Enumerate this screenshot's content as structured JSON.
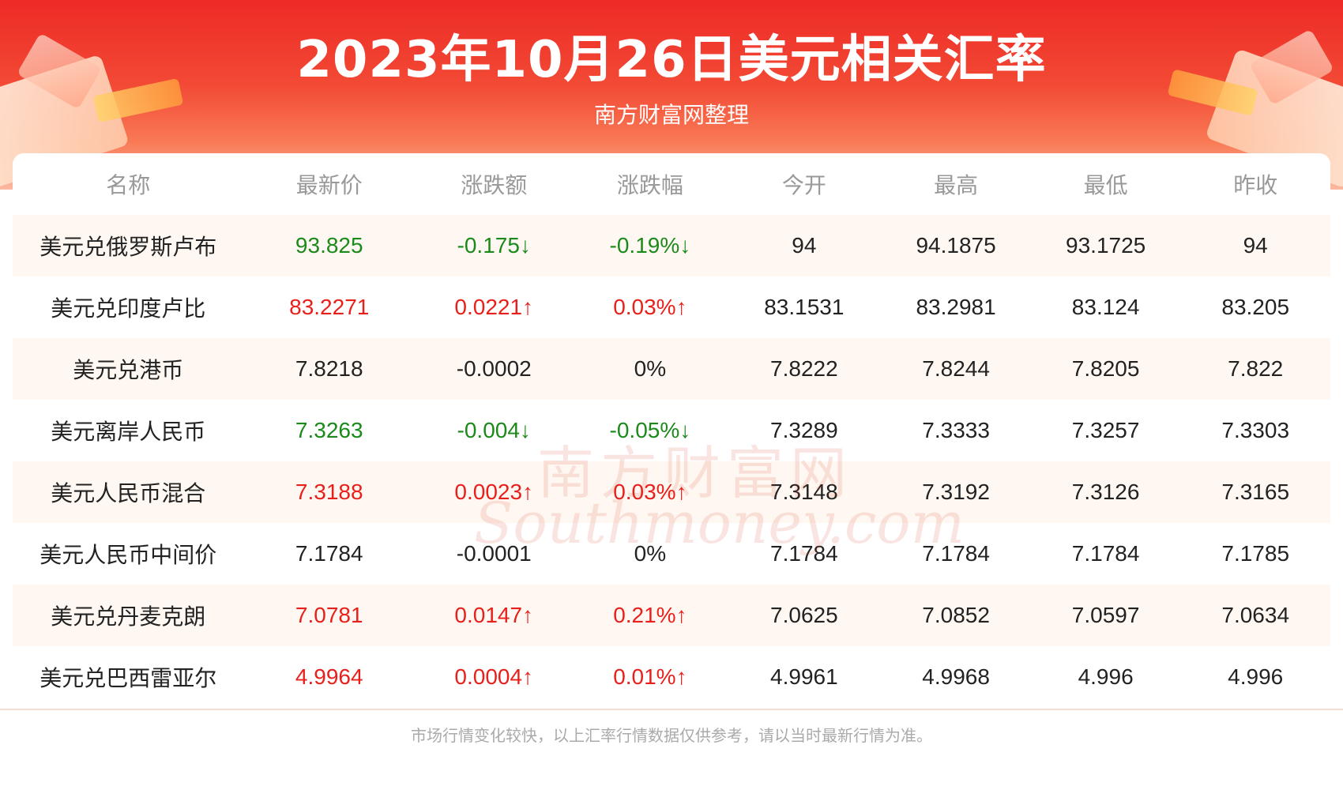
{
  "title": "2023年10月26日美元相关汇率",
  "subtitle": "南方财富网整理",
  "watermark": {
    "cn": "南方财富网",
    "en": "Southmoney.com"
  },
  "colors": {
    "up": "#e8201c",
    "down": "#1b8a1b",
    "banner": "#ee2a26"
  },
  "table": {
    "headers": [
      "名称",
      "最新价",
      "涨跌额",
      "涨跌幅",
      "今开",
      "最高",
      "最低",
      "昨收"
    ],
    "rows": [
      {
        "name": "美元兑俄罗斯卢布",
        "latest": "93.825",
        "change": "-0.175↓",
        "pct": "-0.19%↓",
        "open": "94",
        "high": "94.1875",
        "low": "93.1725",
        "prev": "94",
        "trend": "down"
      },
      {
        "name": "美元兑印度卢比",
        "latest": "83.2271",
        "change": "0.0221↑",
        "pct": "0.03%↑",
        "open": "83.1531",
        "high": "83.2981",
        "low": "83.124",
        "prev": "83.205",
        "trend": "up"
      },
      {
        "name": "美元兑港币",
        "latest": "7.8218",
        "change": "-0.0002",
        "pct": "0%",
        "open": "7.8222",
        "high": "7.8244",
        "low": "7.8205",
        "prev": "7.822",
        "trend": "flat"
      },
      {
        "name": "美元离岸人民币",
        "latest": "7.3263",
        "change": "-0.004↓",
        "pct": "-0.05%↓",
        "open": "7.3289",
        "high": "7.3333",
        "low": "7.3257",
        "prev": "7.3303",
        "trend": "down"
      },
      {
        "name": "美元人民币混合",
        "latest": "7.3188",
        "change": "0.0023↑",
        "pct": "0.03%↑",
        "open": "7.3148",
        "high": "7.3192",
        "low": "7.3126",
        "prev": "7.3165",
        "trend": "up"
      },
      {
        "name": "美元人民币中间价",
        "latest": "7.1784",
        "change": "-0.0001",
        "pct": "0%",
        "open": "7.1784",
        "high": "7.1784",
        "low": "7.1784",
        "prev": "7.1785",
        "trend": "flat"
      },
      {
        "name": "美元兑丹麦克朗",
        "latest": "7.0781",
        "change": "0.0147↑",
        "pct": "0.21%↑",
        "open": "7.0625",
        "high": "7.0852",
        "low": "7.0597",
        "prev": "7.0634",
        "trend": "up"
      },
      {
        "name": "美元兑巴西雷亚尔",
        "latest": "4.9964",
        "change": "0.0004↑",
        "pct": "0.01%↑",
        "open": "4.9961",
        "high": "4.9968",
        "low": "4.996",
        "prev": "4.996",
        "trend": "up"
      }
    ]
  },
  "footer": "市场行情变化较快，以上汇率行情数据仅供参考，请以当时最新行情为准。"
}
